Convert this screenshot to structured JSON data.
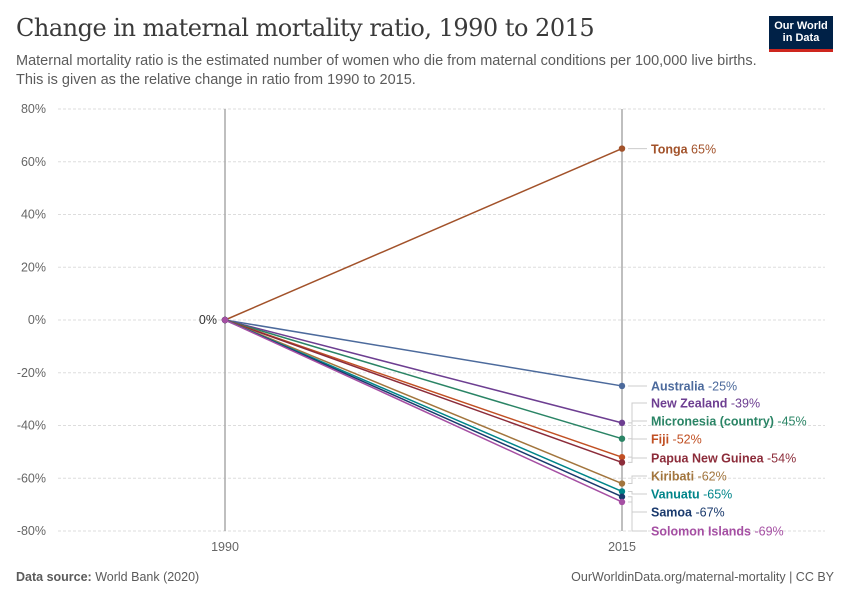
{
  "header": {
    "title": "Change in maternal mortality ratio, 1990 to 2015",
    "subtitle": "Maternal mortality ratio is the estimated number of women who die from maternal conditions per 100,000 live births. This is given as the relative change in ratio from 1990 to 2015.",
    "logo": "Our World in Data"
  },
  "footer": {
    "source_label": "Data source:",
    "source": "World Bank (2020)",
    "url": "OurWorldinData.org/maternal-mortality | CC BY"
  },
  "chart_data": {
    "type": "slope",
    "x": [
      "1990",
      "2015"
    ],
    "ylim": [
      -80,
      80
    ],
    "yticks": [
      80,
      60,
      40,
      20,
      0,
      -20,
      -40,
      -60,
      -80
    ],
    "ytick_labels": [
      "80%",
      "60%",
      "40%",
      "20%",
      "0%",
      "-20%",
      "-40%",
      "-60%",
      "-80%"
    ],
    "start_label": "0%",
    "grid": true,
    "series": [
      {
        "name": "Tonga",
        "values": [
          0,
          65
        ],
        "label": "65%",
        "color": "#a2522a"
      },
      {
        "name": "Australia",
        "values": [
          0,
          -25
        ],
        "label": "-25%",
        "color": "#4c6a9c"
      },
      {
        "name": "New Zealand",
        "values": [
          0,
          -39
        ],
        "label": "-39%",
        "color": "#6d3e91"
      },
      {
        "name": "Micronesia (country)",
        "values": [
          0,
          -45
        ],
        "label": "-45%",
        "color": "#2a8465"
      },
      {
        "name": "Fiji",
        "values": [
          0,
          -52
        ],
        "label": "-52%",
        "color": "#c15024"
      },
      {
        "name": "Papua New Guinea",
        "values": [
          0,
          -54
        ],
        "label": "-54%",
        "color": "#8c2c3a"
      },
      {
        "name": "Kiribati",
        "values": [
          0,
          -62
        ],
        "label": "-62%",
        "color": "#a2753d"
      },
      {
        "name": "Vanuatu",
        "values": [
          0,
          -65
        ],
        "label": "-65%",
        "color": "#00858a"
      },
      {
        "name": "Samoa",
        "values": [
          0,
          -67
        ],
        "label": "-67%",
        "color": "#1a3a6d"
      },
      {
        "name": "Solomon Islands",
        "values": [
          0,
          -69
        ],
        "label": "-69%",
        "color": "#a54fa3"
      }
    ]
  }
}
